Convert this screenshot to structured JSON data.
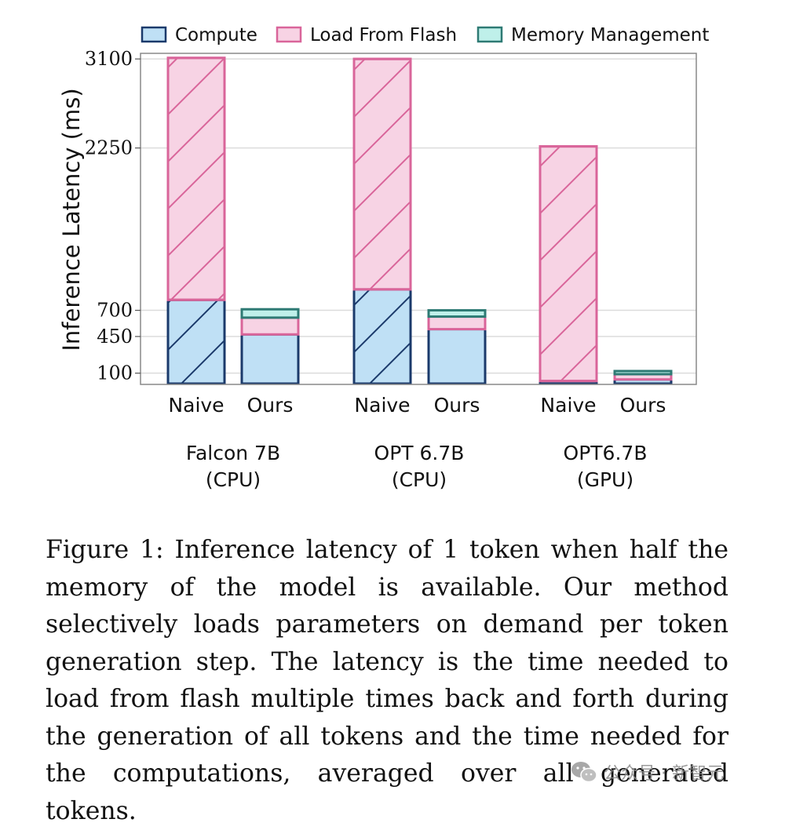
{
  "chart_data": {
    "type": "bar",
    "stacked": true,
    "ylabel": "Inference Latency (ms)",
    "yticks": [
      100,
      450,
      700,
      2250,
      3100
    ],
    "ylim": [
      0,
      3150
    ],
    "grid": true,
    "legend_position": "top",
    "series": [
      {
        "name": "Compute",
        "color_fill": "#bfe0f5",
        "color_edge": "#1b3a6b",
        "hatch": "diagonal",
        "values": [
          800,
          470,
          900,
          520,
          25,
          40
        ]
      },
      {
        "name": "Load From Flash",
        "color_fill": "#f7d3e4",
        "color_edge": "#d9659a",
        "hatch": "diagonal",
        "values": [
          2310,
          160,
          2200,
          120,
          2240,
          50
        ]
      },
      {
        "name": "Memory Management",
        "color_fill": "#bff0ea",
        "color_edge": "#2e7a74",
        "hatch": "none",
        "values": [
          0,
          80,
          0,
          60,
          0,
          30
        ]
      }
    ],
    "categories": [
      "Naive",
      "Ours",
      "Naive",
      "Ours",
      "Naive",
      "Ours"
    ],
    "groups": [
      {
        "line1": "Falcon 7B",
        "line2": "(CPU)"
      },
      {
        "line1": "OPT 6.7B",
        "line2": "(CPU)"
      },
      {
        "line1": "OPT6.7B",
        "line2": "(GPU)"
      }
    ]
  },
  "caption": "Figure 1: Inference latency of 1 token when half the memory of the model is available. Our method selectively loads parameters on demand per token generation step. The latency is the time needed to load from flash multiple times back and forth during the generation of all tokens and the time needed for the computations, averaged over all generated tokens.",
  "watermark": {
    "text": "公众号 · 新智元"
  }
}
